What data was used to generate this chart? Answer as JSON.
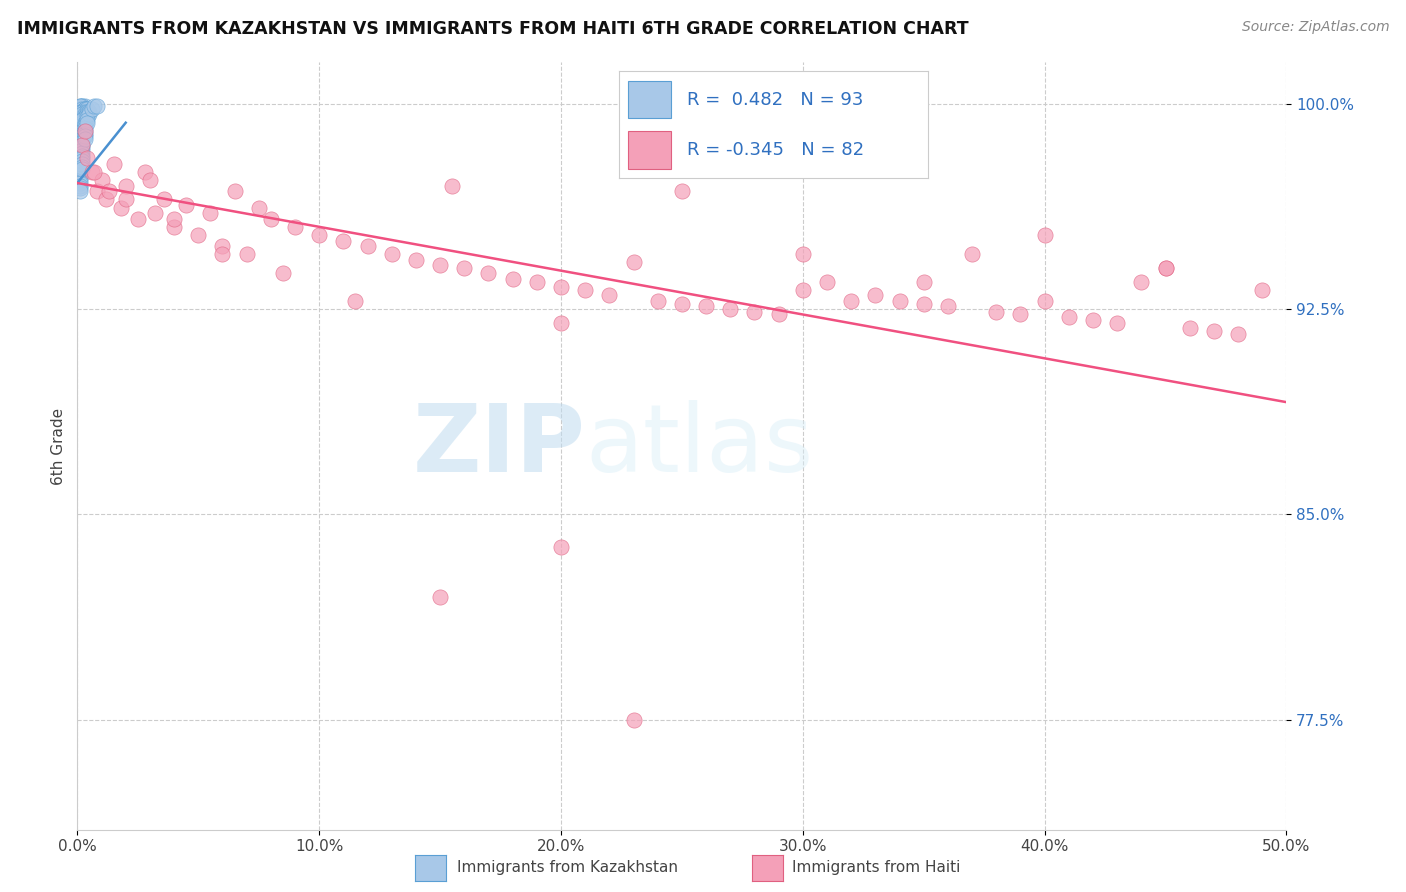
{
  "title": "IMMIGRANTS FROM KAZAKHSTAN VS IMMIGRANTS FROM HAITI 6TH GRADE CORRELATION CHART",
  "source": "Source: ZipAtlas.com",
  "ylabel": "6th Grade",
  "xlim": [
    0.0,
    0.5
  ],
  "ylim": [
    0.735,
    1.015
  ],
  "xtick_labels": [
    "0.0%",
    "10.0%",
    "20.0%",
    "30.0%",
    "40.0%",
    "50.0%"
  ],
  "xtick_vals": [
    0.0,
    0.1,
    0.2,
    0.3,
    0.4,
    0.5
  ],
  "ytick_labels": [
    "77.5%",
    "85.0%",
    "92.5%",
    "100.0%"
  ],
  "ytick_vals": [
    0.775,
    0.85,
    0.925,
    1.0
  ],
  "kaz_R": 0.482,
  "kaz_N": 93,
  "haiti_R": -0.345,
  "haiti_N": 82,
  "kaz_color": "#a8c8e8",
  "haiti_color": "#f4a0b8",
  "kaz_edge_color": "#5a9fd4",
  "haiti_edge_color": "#e06080",
  "kaz_line_color": "#4a90d0",
  "haiti_line_color": "#f05080",
  "legend_text_color": "#3070c0",
  "background_color": "#ffffff",
  "grid_color": "#cccccc",
  "watermark_zip": "ZIP",
  "watermark_atlas": "atlas",
  "haiti_line_x0": 0.0,
  "haiti_line_y0": 0.971,
  "haiti_line_x1": 0.5,
  "haiti_line_y1": 0.891,
  "kaz_line_x0": 0.0,
  "kaz_line_y0": 0.971,
  "kaz_line_x1": 0.02,
  "kaz_line_y1": 0.993,
  "kaz_scatter_x": [
    0.001,
    0.001,
    0.002,
    0.001,
    0.002,
    0.003,
    0.001,
    0.002,
    0.001,
    0.001,
    0.002,
    0.001,
    0.003,
    0.001,
    0.002,
    0.001,
    0.002,
    0.003,
    0.001,
    0.002,
    0.001,
    0.001,
    0.002,
    0.001,
    0.003,
    0.001,
    0.002,
    0.001,
    0.004,
    0.002,
    0.001,
    0.003,
    0.002,
    0.001,
    0.002,
    0.001,
    0.003,
    0.002,
    0.001,
    0.004,
    0.002,
    0.001,
    0.003,
    0.002,
    0.001,
    0.002,
    0.001,
    0.004,
    0.002,
    0.001,
    0.003,
    0.002,
    0.001,
    0.005,
    0.002,
    0.001,
    0.003,
    0.002,
    0.001,
    0.004,
    0.002,
    0.001,
    0.003,
    0.002,
    0.001,
    0.005,
    0.002,
    0.001,
    0.003,
    0.002,
    0.001,
    0.004,
    0.002,
    0.001,
    0.006,
    0.002,
    0.001,
    0.003,
    0.002,
    0.001,
    0.004,
    0.002,
    0.001,
    0.007,
    0.002,
    0.001,
    0.003,
    0.002,
    0.001,
    0.008,
    0.002,
    0.001,
    0.003
  ],
  "kaz_scatter_y": [
    0.999,
    0.997,
    0.999,
    0.998,
    0.998,
    0.999,
    0.997,
    0.999,
    0.996,
    0.998,
    0.997,
    0.999,
    0.998,
    0.996,
    0.998,
    0.995,
    0.997,
    0.998,
    0.994,
    0.997,
    0.993,
    0.997,
    0.996,
    0.992,
    0.998,
    0.991,
    0.997,
    0.99,
    0.998,
    0.995,
    0.989,
    0.997,
    0.994,
    0.988,
    0.996,
    0.987,
    0.996,
    0.993,
    0.986,
    0.997,
    0.992,
    0.985,
    0.995,
    0.991,
    0.984,
    0.994,
    0.983,
    0.996,
    0.99,
    0.982,
    0.993,
    0.989,
    0.981,
    0.997,
    0.988,
    0.98,
    0.992,
    0.987,
    0.979,
    0.995,
    0.986,
    0.978,
    0.991,
    0.985,
    0.977,
    0.996,
    0.984,
    0.976,
    0.99,
    0.983,
    0.975,
    0.994,
    0.982,
    0.974,
    0.998,
    0.981,
    0.973,
    0.989,
    0.98,
    0.972,
    0.993,
    0.979,
    0.971,
    0.999,
    0.978,
    0.97,
    0.988,
    0.977,
    0.969,
    0.999,
    0.976,
    0.968,
    0.987
  ],
  "haiti_scatter_x": [
    0.002,
    0.004,
    0.006,
    0.008,
    0.01,
    0.012,
    0.015,
    0.018,
    0.02,
    0.025,
    0.028,
    0.032,
    0.036,
    0.04,
    0.045,
    0.05,
    0.055,
    0.06,
    0.065,
    0.07,
    0.075,
    0.08,
    0.09,
    0.1,
    0.11,
    0.12,
    0.13,
    0.14,
    0.15,
    0.16,
    0.17,
    0.18,
    0.19,
    0.2,
    0.21,
    0.22,
    0.23,
    0.24,
    0.25,
    0.26,
    0.27,
    0.28,
    0.29,
    0.3,
    0.31,
    0.32,
    0.33,
    0.34,
    0.35,
    0.36,
    0.37,
    0.38,
    0.39,
    0.4,
    0.41,
    0.42,
    0.43,
    0.44,
    0.45,
    0.46,
    0.47,
    0.48,
    0.49,
    0.003,
    0.007,
    0.013,
    0.02,
    0.03,
    0.04,
    0.06,
    0.085,
    0.115,
    0.155,
    0.2,
    0.25,
    0.3,
    0.35,
    0.4,
    0.45,
    0.2,
    0.15,
    0.23
  ],
  "haiti_scatter_y": [
    0.985,
    0.98,
    0.975,
    0.968,
    0.972,
    0.965,
    0.978,
    0.962,
    0.97,
    0.958,
    0.975,
    0.96,
    0.965,
    0.955,
    0.963,
    0.952,
    0.96,
    0.948,
    0.968,
    0.945,
    0.962,
    0.958,
    0.955,
    0.952,
    0.95,
    0.948,
    0.945,
    0.943,
    0.941,
    0.94,
    0.938,
    0.936,
    0.935,
    0.933,
    0.932,
    0.93,
    0.942,
    0.928,
    0.927,
    0.926,
    0.925,
    0.924,
    0.923,
    0.932,
    0.935,
    0.928,
    0.93,
    0.928,
    0.927,
    0.926,
    0.945,
    0.924,
    0.923,
    0.952,
    0.922,
    0.921,
    0.92,
    0.935,
    0.94,
    0.918,
    0.917,
    0.916,
    0.932,
    0.99,
    0.975,
    0.968,
    0.965,
    0.972,
    0.958,
    0.945,
    0.938,
    0.928,
    0.97,
    0.92,
    0.968,
    0.945,
    0.935,
    0.928,
    0.94,
    0.838,
    0.82,
    0.775
  ]
}
